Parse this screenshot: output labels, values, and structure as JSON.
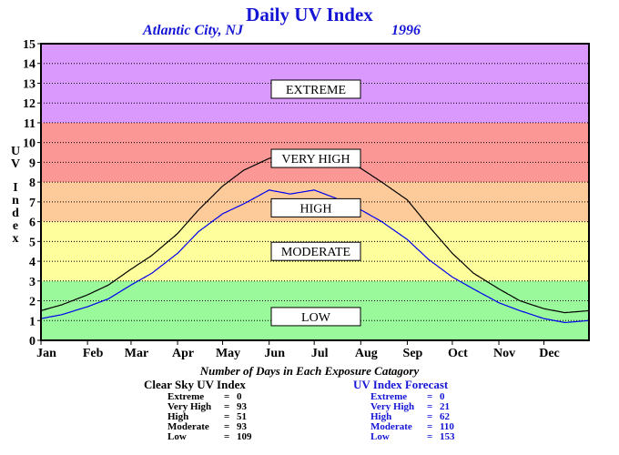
{
  "title": "Daily UV Index",
  "subtitle_location": "Atlantic City, NJ",
  "subtitle_year": "1996",
  "ylabel_letters": [
    "U",
    "V",
    "",
    "I",
    "n",
    "d",
    "e",
    "x"
  ],
  "colors": {
    "low": "#99f99b",
    "moderate": "#fefe9c",
    "high": "#fdcb9a",
    "very_high": "#fb9896",
    "extreme": "#da99fc",
    "clear_sky_line": "#000000",
    "forecast_line": "#0000ee",
    "title_blue": "#1515d6"
  },
  "footer_title": "Number of Days in Each Exposure Catagory",
  "clear_sky_stats": {
    "title": "Clear Sky UV Index",
    "rows": [
      {
        "label": "Extreme",
        "eq": "=",
        "value": "0"
      },
      {
        "label": "Very High",
        "eq": "=",
        "value": "93"
      },
      {
        "label": "High",
        "eq": "=",
        "value": "51"
      },
      {
        "label": "Moderate",
        "eq": "=",
        "value": "93"
      },
      {
        "label": "Low",
        "eq": "=",
        "value": "109"
      }
    ]
  },
  "forecast_stats": {
    "title": "UV Index Forecast",
    "rows": [
      {
        "label": "Extreme",
        "eq": "=",
        "value": "0"
      },
      {
        "label": "Very High",
        "eq": "=",
        "value": "21"
      },
      {
        "label": "High",
        "eq": "=",
        "value": "62"
      },
      {
        "label": "Moderate",
        "eq": "=",
        "value": "110"
      },
      {
        "label": "Low",
        "eq": "=",
        "value": "153"
      }
    ]
  },
  "chart_data": {
    "type": "line",
    "title": "Daily UV Index",
    "ylabel": "UV Index",
    "xlabel": "",
    "xlim": [
      1,
      366
    ],
    "ylim": [
      0,
      15
    ],
    "y_ticks": [
      0,
      1,
      2,
      3,
      4,
      5,
      6,
      7,
      8,
      9,
      10,
      11,
      12,
      13,
      14,
      15
    ],
    "x_tick_labels": [
      "Jan",
      "Feb",
      "Mar",
      "Apr",
      "May",
      "Jun",
      "Jul",
      "Aug",
      "Sep",
      "Oct",
      "Nov",
      "Dec"
    ],
    "x_tick_days": [
      1,
      32,
      61,
      92,
      122,
      153,
      183,
      214,
      245,
      275,
      306,
      336
    ],
    "grid": true,
    "bands": [
      {
        "label": "LOW",
        "from": 0,
        "to": 3,
        "label_y": 1.2
      },
      {
        "label": "MODERATE",
        "from": 3,
        "to": 6,
        "label_y": 4.5
      },
      {
        "label": "HIGH",
        "from": 6,
        "to": 8,
        "label_y": 6.7
      },
      {
        "label": "VERY HIGH",
        "from": 8,
        "to": 11,
        "label_y": 9.2
      },
      {
        "label": "EXTREME",
        "from": 11,
        "to": 15,
        "label_y": 12.7
      }
    ],
    "series": [
      {
        "key": "clear_sky",
        "x": [
          1,
          15,
          32,
          46,
          61,
          75,
          92,
          106,
          122,
          136,
          153,
          167,
          183,
          197,
          214,
          228,
          245,
          259,
          275,
          289,
          306,
          320,
          336,
          350,
          366
        ],
        "y": [
          1.5,
          1.8,
          2.3,
          2.8,
          3.6,
          4.3,
          5.4,
          6.6,
          7.8,
          8.6,
          9.2,
          9.4,
          9.5,
          9.3,
          8.7,
          8.0,
          7.1,
          5.8,
          4.4,
          3.4,
          2.6,
          2.0,
          1.6,
          1.4,
          1.5
        ]
      },
      {
        "key": "forecast",
        "x": [
          1,
          15,
          32,
          46,
          61,
          75,
          92,
          106,
          122,
          136,
          153,
          167,
          183,
          197,
          214,
          228,
          245,
          259,
          275,
          289,
          306,
          320,
          336,
          350,
          366
        ],
        "y": [
          1.1,
          1.3,
          1.7,
          2.1,
          2.8,
          3.4,
          4.4,
          5.5,
          6.4,
          6.9,
          7.6,
          7.4,
          7.6,
          7.2,
          6.6,
          6.0,
          5.1,
          4.1,
          3.2,
          2.6,
          1.9,
          1.5,
          1.1,
          0.9,
          1.0
        ]
      }
    ]
  }
}
